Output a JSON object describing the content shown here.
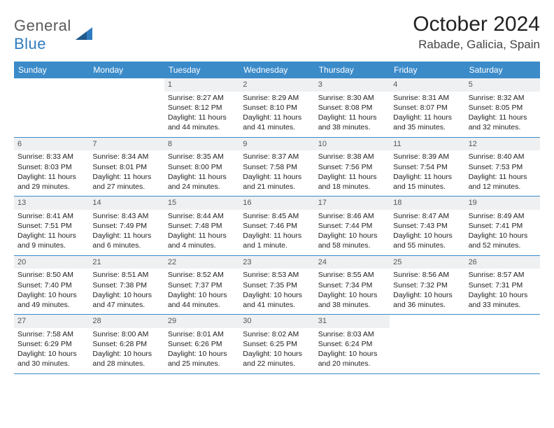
{
  "logo": {
    "word1": "General",
    "word2": "Blue"
  },
  "title": "October 2024",
  "location": "Rabade, Galicia, Spain",
  "colors": {
    "header_bg": "#3b8bc9",
    "header_text": "#ffffff",
    "daynum_bg": "#eef0f2",
    "daynum_text": "#555555",
    "border": "#3b8bc9",
    "body_text": "#222222",
    "logo_gray": "#5a5a5a",
    "logo_blue": "#2f7bbf"
  },
  "typography": {
    "title_fontsize": 30,
    "location_fontsize": 17,
    "header_fontsize": 12,
    "cell_fontsize": 10.5,
    "daynum_fontsize": 11
  },
  "day_names": [
    "Sunday",
    "Monday",
    "Tuesday",
    "Wednesday",
    "Thursday",
    "Friday",
    "Saturday"
  ],
  "weeks": [
    [
      {
        "n": "",
        "lines": [
          "",
          "",
          ""
        ]
      },
      {
        "n": "",
        "lines": [
          "",
          "",
          ""
        ]
      },
      {
        "n": "1",
        "lines": [
          "Sunrise: 8:27 AM",
          "Sunset: 8:12 PM",
          "Daylight: 11 hours and 44 minutes."
        ]
      },
      {
        "n": "2",
        "lines": [
          "Sunrise: 8:29 AM",
          "Sunset: 8:10 PM",
          "Daylight: 11 hours and 41 minutes."
        ]
      },
      {
        "n": "3",
        "lines": [
          "Sunrise: 8:30 AM",
          "Sunset: 8:08 PM",
          "Daylight: 11 hours and 38 minutes."
        ]
      },
      {
        "n": "4",
        "lines": [
          "Sunrise: 8:31 AM",
          "Sunset: 8:07 PM",
          "Daylight: 11 hours and 35 minutes."
        ]
      },
      {
        "n": "5",
        "lines": [
          "Sunrise: 8:32 AM",
          "Sunset: 8:05 PM",
          "Daylight: 11 hours and 32 minutes."
        ]
      }
    ],
    [
      {
        "n": "6",
        "lines": [
          "Sunrise: 8:33 AM",
          "Sunset: 8:03 PM",
          "Daylight: 11 hours and 29 minutes."
        ]
      },
      {
        "n": "7",
        "lines": [
          "Sunrise: 8:34 AM",
          "Sunset: 8:01 PM",
          "Daylight: 11 hours and 27 minutes."
        ]
      },
      {
        "n": "8",
        "lines": [
          "Sunrise: 8:35 AM",
          "Sunset: 8:00 PM",
          "Daylight: 11 hours and 24 minutes."
        ]
      },
      {
        "n": "9",
        "lines": [
          "Sunrise: 8:37 AM",
          "Sunset: 7:58 PM",
          "Daylight: 11 hours and 21 minutes."
        ]
      },
      {
        "n": "10",
        "lines": [
          "Sunrise: 8:38 AM",
          "Sunset: 7:56 PM",
          "Daylight: 11 hours and 18 minutes."
        ]
      },
      {
        "n": "11",
        "lines": [
          "Sunrise: 8:39 AM",
          "Sunset: 7:54 PM",
          "Daylight: 11 hours and 15 minutes."
        ]
      },
      {
        "n": "12",
        "lines": [
          "Sunrise: 8:40 AM",
          "Sunset: 7:53 PM",
          "Daylight: 11 hours and 12 minutes."
        ]
      }
    ],
    [
      {
        "n": "13",
        "lines": [
          "Sunrise: 8:41 AM",
          "Sunset: 7:51 PM",
          "Daylight: 11 hours and 9 minutes."
        ]
      },
      {
        "n": "14",
        "lines": [
          "Sunrise: 8:43 AM",
          "Sunset: 7:49 PM",
          "Daylight: 11 hours and 6 minutes."
        ]
      },
      {
        "n": "15",
        "lines": [
          "Sunrise: 8:44 AM",
          "Sunset: 7:48 PM",
          "Daylight: 11 hours and 4 minutes."
        ]
      },
      {
        "n": "16",
        "lines": [
          "Sunrise: 8:45 AM",
          "Sunset: 7:46 PM",
          "Daylight: 11 hours and 1 minute."
        ]
      },
      {
        "n": "17",
        "lines": [
          "Sunrise: 8:46 AM",
          "Sunset: 7:44 PM",
          "Daylight: 10 hours and 58 minutes."
        ]
      },
      {
        "n": "18",
        "lines": [
          "Sunrise: 8:47 AM",
          "Sunset: 7:43 PM",
          "Daylight: 10 hours and 55 minutes."
        ]
      },
      {
        "n": "19",
        "lines": [
          "Sunrise: 8:49 AM",
          "Sunset: 7:41 PM",
          "Daylight: 10 hours and 52 minutes."
        ]
      }
    ],
    [
      {
        "n": "20",
        "lines": [
          "Sunrise: 8:50 AM",
          "Sunset: 7:40 PM",
          "Daylight: 10 hours and 49 minutes."
        ]
      },
      {
        "n": "21",
        "lines": [
          "Sunrise: 8:51 AM",
          "Sunset: 7:38 PM",
          "Daylight: 10 hours and 47 minutes."
        ]
      },
      {
        "n": "22",
        "lines": [
          "Sunrise: 8:52 AM",
          "Sunset: 7:37 PM",
          "Daylight: 10 hours and 44 minutes."
        ]
      },
      {
        "n": "23",
        "lines": [
          "Sunrise: 8:53 AM",
          "Sunset: 7:35 PM",
          "Daylight: 10 hours and 41 minutes."
        ]
      },
      {
        "n": "24",
        "lines": [
          "Sunrise: 8:55 AM",
          "Sunset: 7:34 PM",
          "Daylight: 10 hours and 38 minutes."
        ]
      },
      {
        "n": "25",
        "lines": [
          "Sunrise: 8:56 AM",
          "Sunset: 7:32 PM",
          "Daylight: 10 hours and 36 minutes."
        ]
      },
      {
        "n": "26",
        "lines": [
          "Sunrise: 8:57 AM",
          "Sunset: 7:31 PM",
          "Daylight: 10 hours and 33 minutes."
        ]
      }
    ],
    [
      {
        "n": "27",
        "lines": [
          "Sunrise: 7:58 AM",
          "Sunset: 6:29 PM",
          "Daylight: 10 hours and 30 minutes."
        ]
      },
      {
        "n": "28",
        "lines": [
          "Sunrise: 8:00 AM",
          "Sunset: 6:28 PM",
          "Daylight: 10 hours and 28 minutes."
        ]
      },
      {
        "n": "29",
        "lines": [
          "Sunrise: 8:01 AM",
          "Sunset: 6:26 PM",
          "Daylight: 10 hours and 25 minutes."
        ]
      },
      {
        "n": "30",
        "lines": [
          "Sunrise: 8:02 AM",
          "Sunset: 6:25 PM",
          "Daylight: 10 hours and 22 minutes."
        ]
      },
      {
        "n": "31",
        "lines": [
          "Sunrise: 8:03 AM",
          "Sunset: 6:24 PM",
          "Daylight: 10 hours and 20 minutes."
        ]
      },
      {
        "n": "",
        "lines": [
          "",
          "",
          ""
        ]
      },
      {
        "n": "",
        "lines": [
          "",
          "",
          ""
        ]
      }
    ]
  ]
}
